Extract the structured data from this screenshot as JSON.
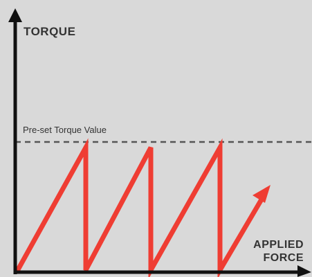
{
  "diagram": {
    "y_axis_label": "TORQUE",
    "x_axis_label_line1": "APPLIED",
    "x_axis_label_line2": "FORCE",
    "threshold_label": "Pre-set Torque Value"
  },
  "colors": {
    "background": "#d9d9d9",
    "axis": "#111111",
    "sawtooth": "#ef3d33",
    "threshold_line": "#555555",
    "text": "#333333"
  }
}
